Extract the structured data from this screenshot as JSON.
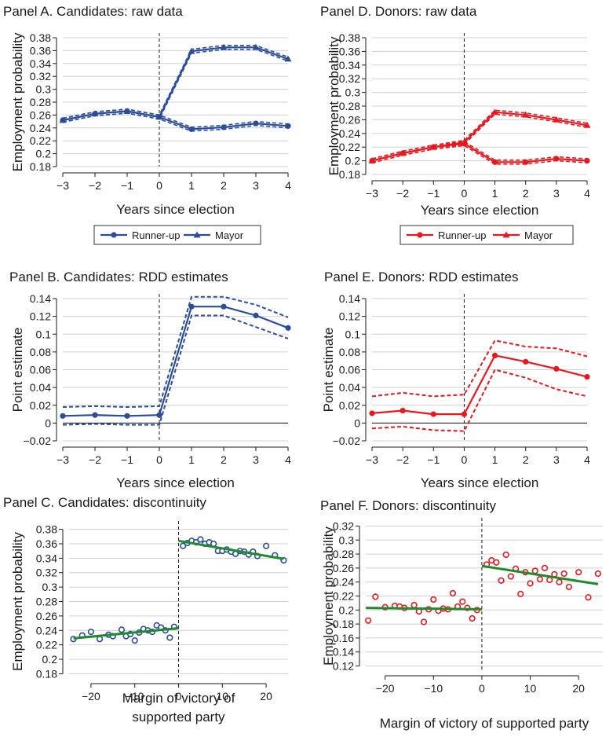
{
  "colors": {
    "blue": "#2b4c9b",
    "red": "#e8181e",
    "green": "#1f8a2e",
    "axis": "#1a1a1a",
    "grid": "#d0d0d0"
  },
  "chart_data": [
    {
      "id": "A",
      "type": "line",
      "title": "Panel A. Candidates: raw data",
      "xlabel": "Years since election",
      "ylabel": "Employment probability",
      "xlim": [
        -3,
        4
      ],
      "ylim": [
        0.18,
        0.38
      ],
      "xticks": [
        -3,
        -2,
        -1,
        0,
        1,
        2,
        3,
        4
      ],
      "yticks": [
        0.18,
        0.2,
        0.22,
        0.24,
        0.26,
        0.28,
        0.3,
        0.32,
        0.34,
        0.36,
        0.38
      ],
      "x": [
        -3,
        -2,
        -1,
        0,
        1,
        2,
        3,
        4
      ],
      "vline": 0,
      "grid": true,
      "color": "blue",
      "series": [
        {
          "name": "Runner-up",
          "marker": "circle",
          "values": [
            0.252,
            0.262,
            0.266,
            0.257,
            0.238,
            0.241,
            0.247,
            0.243
          ]
        },
        {
          "name": "Mayor",
          "marker": "triangle",
          "values": [
            0.252,
            0.262,
            0.266,
            0.257,
            0.359,
            0.365,
            0.365,
            0.347
          ]
        }
      ],
      "legend": [
        "Runner-up",
        "Mayor"
      ]
    },
    {
      "id": "B",
      "type": "line",
      "title": "Panel B. Candidates: RDD estimates",
      "xlabel": "Years since election",
      "ylabel": "Point estimate",
      "xlim": [
        -3,
        4
      ],
      "ylim": [
        -0.02,
        0.14
      ],
      "xticks": [
        -3,
        -2,
        -1,
        0,
        1,
        2,
        3,
        4
      ],
      "yticks": [
        -0.02,
        0,
        0.02,
        0.04,
        0.06,
        0.08,
        0.1,
        0.12,
        0.14
      ],
      "x": [
        -3,
        -2,
        -1,
        0,
        1,
        2,
        3,
        4
      ],
      "vline": 0,
      "hline": 0,
      "grid": true,
      "color": "blue",
      "estimate": [
        0.008,
        0.009,
        0.008,
        0.009,
        0.131,
        0.131,
        0.121,
        0.107
      ],
      "ci_low": [
        -0.002,
        -0.001,
        -0.002,
        -0.002,
        0.121,
        0.121,
        0.108,
        0.095
      ],
      "ci_high": [
        0.018,
        0.019,
        0.018,
        0.019,
        0.142,
        0.142,
        0.133,
        0.119
      ]
    },
    {
      "id": "C",
      "type": "scatter",
      "title": "Panel C. Candidates: discontinuity",
      "xlabel": "Margin of victory of supported party",
      "ylabel": "Employment probability",
      "xlim": [
        -25,
        25
      ],
      "ylim": [
        0.175,
        0.385
      ],
      "xticks": [
        -20,
        -10,
        0,
        10,
        20
      ],
      "yticks": [
        0.18,
        0.2,
        0.22,
        0.24,
        0.26,
        0.28,
        0.3,
        0.32,
        0.34,
        0.36,
        0.38
      ],
      "vline": 0,
      "grid": true,
      "color": "blue",
      "points": [
        [
          -24,
          0.228
        ],
        [
          -22,
          0.233
        ],
        [
          -20,
          0.238
        ],
        [
          -18,
          0.228
        ],
        [
          -16,
          0.234
        ],
        [
          -15,
          0.232
        ],
        [
          -13,
          0.241
        ],
        [
          -12,
          0.232
        ],
        [
          -11,
          0.235
        ],
        [
          -10,
          0.226
        ],
        [
          -9,
          0.237
        ],
        [
          -8,
          0.242
        ],
        [
          -7,
          0.24
        ],
        [
          -6,
          0.238
        ],
        [
          -5,
          0.247
        ],
        [
          -4,
          0.244
        ],
        [
          -3,
          0.24
        ],
        [
          -2,
          0.23
        ],
        [
          -1,
          0.245
        ],
        [
          1,
          0.357
        ],
        [
          2,
          0.361
        ],
        [
          3,
          0.364
        ],
        [
          4,
          0.362
        ],
        [
          5,
          0.366
        ],
        [
          6,
          0.36
        ],
        [
          7,
          0.362
        ],
        [
          8,
          0.36
        ],
        [
          9,
          0.35
        ],
        [
          10,
          0.35
        ],
        [
          11,
          0.352
        ],
        [
          12,
          0.349
        ],
        [
          13,
          0.346
        ],
        [
          14,
          0.35
        ],
        [
          15,
          0.349
        ],
        [
          16,
          0.345
        ],
        [
          17,
          0.349
        ],
        [
          18,
          0.343
        ],
        [
          20,
          0.357
        ],
        [
          22,
          0.344
        ],
        [
          24,
          0.337
        ]
      ],
      "fit_left": [
        [
          -24,
          0.229
        ],
        [
          0,
          0.243
        ]
      ],
      "fit_right": [
        [
          0,
          0.364
        ],
        [
          24,
          0.339
        ]
      ]
    },
    {
      "id": "D",
      "type": "line",
      "title": "Panel D. Donors: raw data",
      "xlabel": "Years since election",
      "ylabel": "Employment probability",
      "xlim": [
        -3,
        4
      ],
      "ylim": [
        0.18,
        0.38
      ],
      "xticks": [
        -3,
        -2,
        -1,
        0,
        1,
        2,
        3,
        4
      ],
      "yticks": [
        0.18,
        0.2,
        0.22,
        0.24,
        0.26,
        0.28,
        0.3,
        0.32,
        0.34,
        0.36,
        0.38
      ],
      "x": [
        -3,
        -2,
        -1,
        0,
        1,
        2,
        3,
        4
      ],
      "vline": 0,
      "grid": true,
      "color": "red",
      "series": [
        {
          "name": "Runner-up",
          "marker": "circle",
          "values": [
            0.2,
            0.211,
            0.22,
            0.225,
            0.198,
            0.198,
            0.203,
            0.2
          ]
        },
        {
          "name": "Mayor",
          "marker": "triangle",
          "values": [
            0.2,
            0.211,
            0.22,
            0.227,
            0.271,
            0.267,
            0.26,
            0.252
          ]
        }
      ],
      "legend": [
        "Runner-up",
        "Mayor"
      ]
    },
    {
      "id": "E",
      "type": "line",
      "title": "Panel E. Donors: RDD estimates",
      "xlabel": "Years since election",
      "ylabel": "Point estimate",
      "xlim": [
        -3,
        4
      ],
      "ylim": [
        -0.02,
        0.14
      ],
      "xticks": [
        -3,
        -2,
        -1,
        0,
        1,
        2,
        3,
        4
      ],
      "yticks": [
        -0.02,
        0,
        0.02,
        0.04,
        0.06,
        0.08,
        0.1,
        0.12,
        0.14
      ],
      "x": [
        -3,
        -2,
        -1,
        0,
        1,
        2,
        3,
        4
      ],
      "vline": 0,
      "hline": 0,
      "grid": true,
      "color": "red",
      "estimate": [
        0.011,
        0.014,
        0.01,
        0.01,
        0.076,
        0.069,
        0.061,
        0.052
      ],
      "ci_low": [
        -0.006,
        -0.004,
        -0.008,
        -0.009,
        0.06,
        0.051,
        0.038,
        0.03
      ],
      "ci_high": [
        0.03,
        0.034,
        0.03,
        0.032,
        0.093,
        0.086,
        0.084,
        0.075
      ]
    },
    {
      "id": "F",
      "type": "scatter",
      "title": "Panel F. Donors: discontinuity",
      "xlabel": "Margin of victory of supported party",
      "ylabel": "Employment probability",
      "xlim": [
        -24,
        25
      ],
      "ylim": [
        0.115,
        0.325
      ],
      "xticks": [
        -20,
        -10,
        0,
        10,
        20
      ],
      "yticks": [
        0.12,
        0.14,
        0.16,
        0.18,
        0.2,
        0.22,
        0.24,
        0.26,
        0.28,
        0.3,
        0.32
      ],
      "vline": 0,
      "grid": true,
      "color": "red",
      "points": [
        [
          -23.5,
          0.185
        ],
        [
          -22,
          0.219
        ],
        [
          -20,
          0.204
        ],
        [
          -18,
          0.206
        ],
        [
          -17,
          0.205
        ],
        [
          -16,
          0.203
        ],
        [
          -14,
          0.207
        ],
        [
          -13,
          0.198
        ],
        [
          -12,
          0.183
        ],
        [
          -11,
          0.201
        ],
        [
          -10,
          0.215
        ],
        [
          -9,
          0.199
        ],
        [
          -8,
          0.202
        ],
        [
          -7,
          0.201
        ],
        [
          -6,
          0.224
        ],
        [
          -5,
          0.205
        ],
        [
          -4,
          0.212
        ],
        [
          -3,
          0.203
        ],
        [
          -2,
          0.188
        ],
        [
          -1,
          0.2
        ],
        [
          1,
          0.265
        ],
        [
          2,
          0.271
        ],
        [
          3,
          0.268
        ],
        [
          4,
          0.242
        ],
        [
          5,
          0.279
        ],
        [
          6,
          0.248
        ],
        [
          7,
          0.259
        ],
        [
          8,
          0.223
        ],
        [
          9,
          0.254
        ],
        [
          10,
          0.238
        ],
        [
          11,
          0.256
        ],
        [
          12,
          0.244
        ],
        [
          13,
          0.26
        ],
        [
          14,
          0.243
        ],
        [
          15,
          0.251
        ],
        [
          16,
          0.24
        ],
        [
          17,
          0.252
        ],
        [
          18,
          0.233
        ],
        [
          20,
          0.254
        ],
        [
          22,
          0.218
        ],
        [
          24,
          0.252
        ]
      ],
      "fit_left": [
        [
          -24,
          0.203
        ],
        [
          0,
          0.201
        ]
      ],
      "fit_right": [
        [
          0,
          0.263
        ],
        [
          24,
          0.237
        ]
      ]
    }
  ]
}
